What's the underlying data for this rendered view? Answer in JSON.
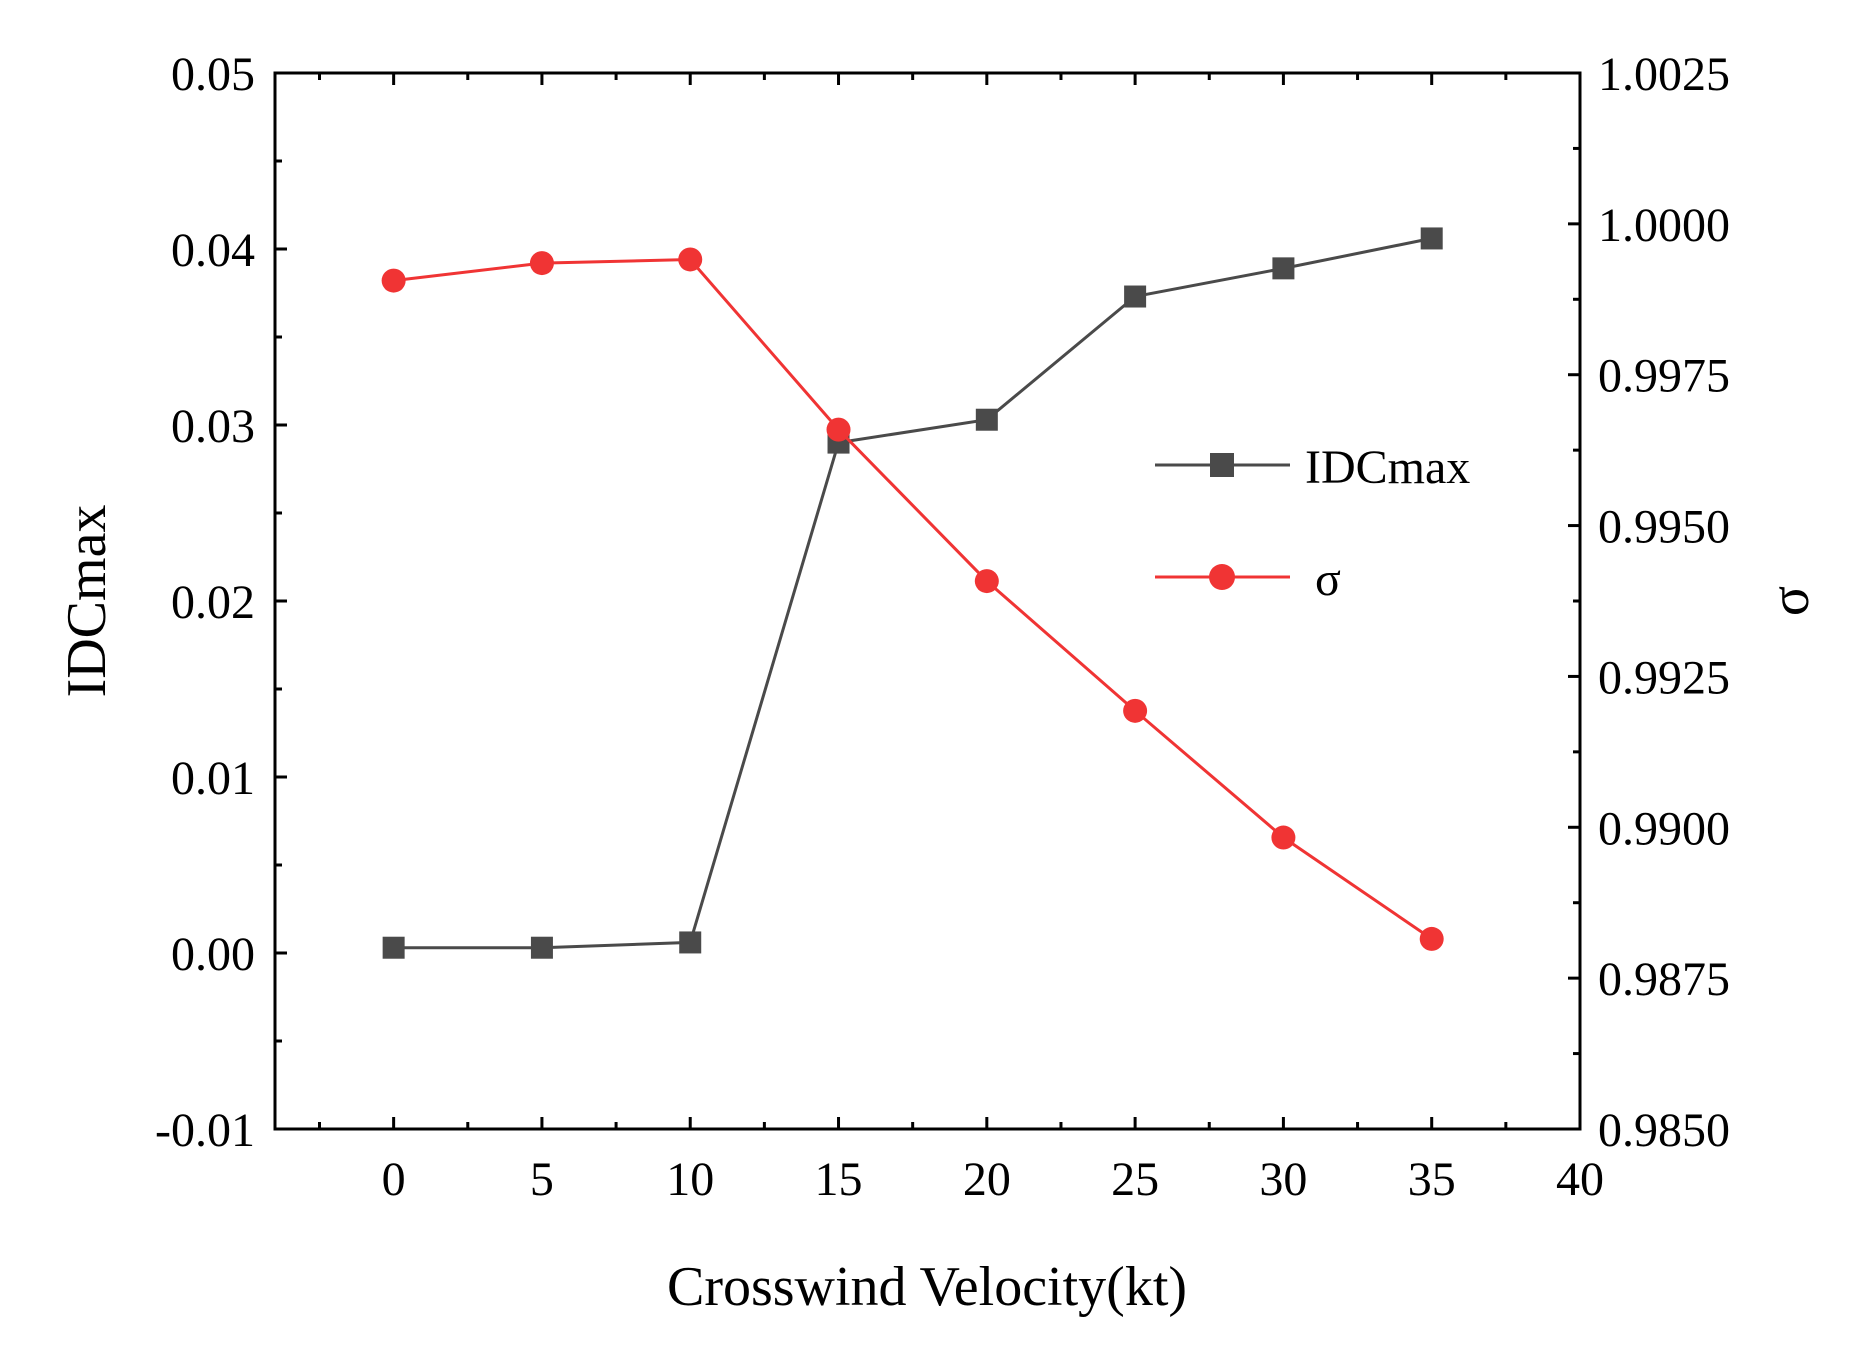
{
  "chart_data": {
    "type": "line",
    "title": "",
    "xlabel": "Crosswind Velocity(kt)",
    "ylabel_left": "IDCmax",
    "ylabel_right": "σ",
    "xlim": [
      -4,
      40
    ],
    "xticks": [
      0,
      5,
      10,
      15,
      20,
      25,
      30,
      35,
      40
    ],
    "xtick_labels": [
      "0",
      "5",
      "10",
      "15",
      "20",
      "25",
      "30",
      "35",
      "40"
    ],
    "ylim_left": [
      -0.01,
      0.05
    ],
    "yticks_left": [
      -0.01,
      0.0,
      0.01,
      0.02,
      0.03,
      0.04,
      0.05
    ],
    "ytick_labels_left": [
      "-0.01",
      "0.00",
      "0.01",
      "0.02",
      "0.03",
      "0.04",
      "0.05"
    ],
    "ylim_right": [
      0.985,
      1.0025
    ],
    "yticks_right": [
      0.985,
      0.9875,
      0.99,
      0.9925,
      0.995,
      0.9975,
      1.0,
      1.0025
    ],
    "ytick_labels_right": [
      "0.9850",
      "0.9875",
      "0.9900",
      "0.9925",
      "0.9950",
      "0.9975",
      "1.0000",
      "1.0025"
    ],
    "x": [
      0,
      5,
      10,
      15,
      20,
      25,
      30,
      35
    ],
    "series": [
      {
        "name": "IDCmax",
        "axis": "left",
        "marker": "square",
        "color": "#4a4a4a",
        "values": [
          0.0003,
          0.0003,
          0.0006,
          0.029,
          0.0303,
          0.0373,
          0.0389,
          0.0406
        ]
      },
      {
        "name": "σ",
        "axis": "right",
        "marker": "circle",
        "color": "#f03434",
        "values": [
          0.99906,
          0.99935,
          0.99941,
          0.99659,
          0.99408,
          0.99193,
          0.98983,
          0.98815
        ]
      }
    ],
    "legend": {
      "placement": "center-right",
      "entries": [
        "IDCmax",
        "σ"
      ]
    },
    "grid": false
  }
}
